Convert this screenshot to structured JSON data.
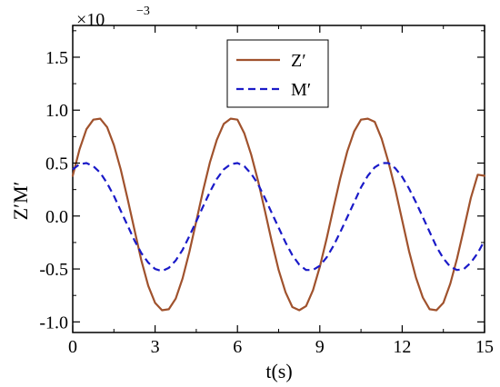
{
  "chart_data": {
    "type": "line",
    "title": "",
    "xlabel": "t(s)",
    "ylabel": "Z′M′",
    "y_scale_label": "×10",
    "y_scale_exponent": "−3",
    "xlim": [
      0,
      15
    ],
    "ylim": [
      -1.1,
      1.8
    ],
    "xticks": [
      0,
      3,
      6,
      9,
      12,
      15
    ],
    "xtick_labels": [
      "0",
      "3",
      "6",
      "9",
      "12",
      "15"
    ],
    "yticks": [
      -1.0,
      -0.5,
      0.0,
      0.5,
      1.0,
      1.5
    ],
    "ytick_labels": [
      "-1.0",
      "-0.5",
      "0.0",
      "0.5",
      "1.0",
      "1.5"
    ],
    "grid": false,
    "legend_position": "top-center",
    "series": [
      {
        "name": "Z′",
        "color": "#a0522d",
        "style": "solid",
        "x": [
          0,
          0.25,
          0.5,
          0.75,
          1.0,
          1.25,
          1.5,
          1.75,
          2.0,
          2.25,
          2.5,
          2.75,
          3.0,
          3.25,
          3.5,
          3.75,
          4.0,
          4.25,
          4.5,
          4.75,
          5.0,
          5.25,
          5.5,
          5.75,
          6.0,
          6.25,
          6.5,
          6.75,
          7.0,
          7.25,
          7.5,
          7.75,
          8.0,
          8.25,
          8.5,
          8.75,
          9.0,
          9.25,
          9.5,
          9.75,
          10.0,
          10.25,
          10.5,
          10.75,
          11.0,
          11.25,
          11.5,
          11.75,
          12.0,
          12.25,
          12.5,
          12.75,
          13.0,
          13.25,
          13.5,
          13.75,
          14.0,
          14.25,
          14.5,
          14.75,
          15.0
        ],
        "values": [
          0.38,
          0.63,
          0.82,
          0.91,
          0.92,
          0.84,
          0.67,
          0.44,
          0.16,
          -0.13,
          -0.42,
          -0.66,
          -0.82,
          -0.89,
          -0.88,
          -0.78,
          -0.59,
          -0.34,
          -0.05,
          0.24,
          0.51,
          0.72,
          0.87,
          0.92,
          0.91,
          0.78,
          0.58,
          0.33,
          0.05,
          -0.24,
          -0.51,
          -0.72,
          -0.86,
          -0.89,
          -0.85,
          -0.7,
          -0.48,
          -0.21,
          0.08,
          0.36,
          0.61,
          0.8,
          0.91,
          0.92,
          0.89,
          0.73,
          0.51,
          0.25,
          -0.04,
          -0.33,
          -0.58,
          -0.77,
          -0.88,
          -0.89,
          -0.82,
          -0.64,
          -0.4,
          -0.12,
          0.17,
          0.39,
          0.38
        ]
      },
      {
        "name": "M′",
        "color": "#1a1ac8",
        "style": "dashed",
        "x": [
          0,
          0.25,
          0.5,
          0.75,
          1.0,
          1.25,
          1.5,
          1.75,
          2.0,
          2.25,
          2.5,
          2.75,
          3.0,
          3.25,
          3.5,
          3.75,
          4.0,
          4.25,
          4.5,
          4.75,
          5.0,
          5.25,
          5.5,
          5.75,
          6.0,
          6.25,
          6.5,
          6.75,
          7.0,
          7.25,
          7.5,
          7.75,
          8.0,
          8.25,
          8.5,
          8.75,
          9.0,
          9.25,
          9.5,
          9.75,
          10.0,
          10.25,
          10.5,
          10.75,
          11.0,
          11.25,
          11.5,
          11.75,
          12.0,
          12.25,
          12.5,
          12.75,
          13.0,
          13.25,
          13.5,
          13.75,
          14.0,
          14.25,
          14.5,
          14.75,
          15.0
        ],
        "values": [
          0.44,
          0.49,
          0.5,
          0.47,
          0.41,
          0.31,
          0.19,
          0.05,
          -0.09,
          -0.23,
          -0.35,
          -0.44,
          -0.5,
          -0.52,
          -0.49,
          -0.42,
          -0.32,
          -0.19,
          -0.05,
          0.09,
          0.23,
          0.35,
          0.44,
          0.49,
          0.5,
          0.47,
          0.4,
          0.3,
          0.17,
          0.03,
          -0.11,
          -0.25,
          -0.37,
          -0.46,
          -0.51,
          -0.51,
          -0.47,
          -0.39,
          -0.28,
          -0.15,
          -0.01,
          0.13,
          0.27,
          0.38,
          0.46,
          0.5,
          0.5,
          0.45,
          0.37,
          0.26,
          0.13,
          -0.01,
          -0.15,
          -0.29,
          -0.4,
          -0.48,
          -0.51,
          -0.5,
          -0.44,
          -0.35,
          -0.23
        ]
      }
    ]
  }
}
